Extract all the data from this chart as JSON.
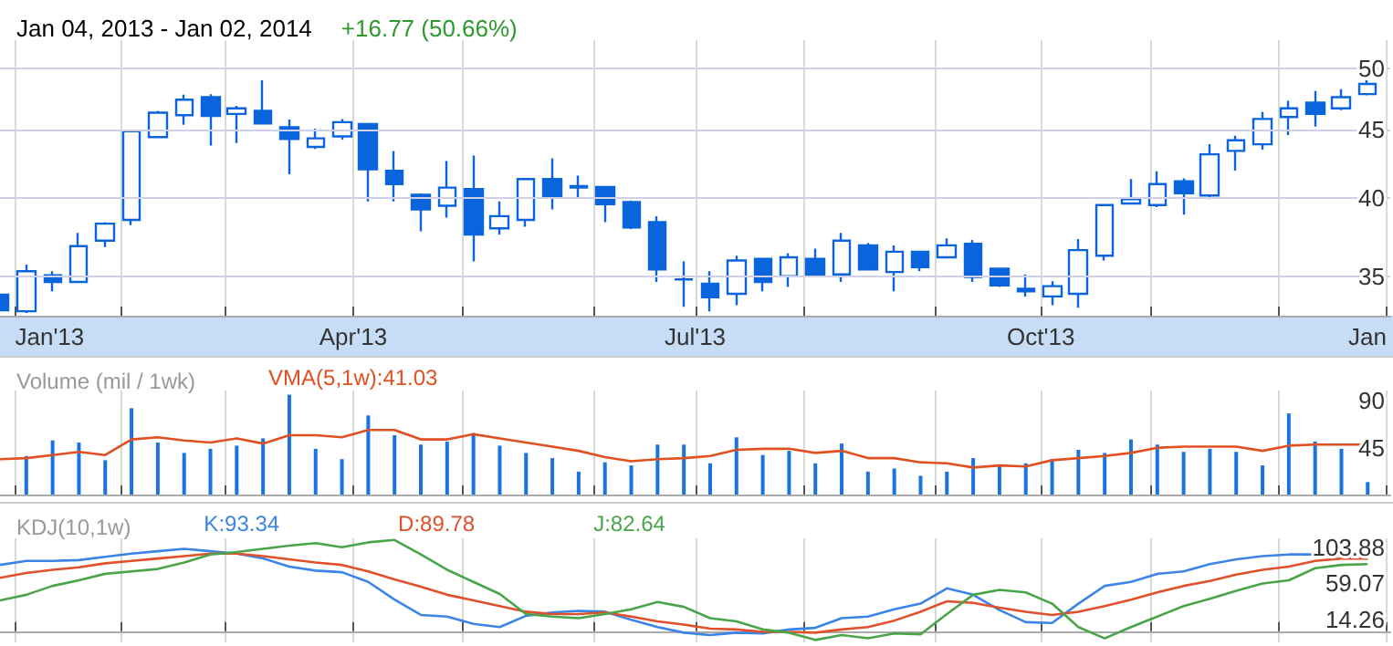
{
  "chart_data": [
    {
      "type": "candlestick",
      "title": "Jan 04, 2013 - Jan 02, 2014",
      "subtitle": "+16.77 (50.66%)",
      "color": "#0a64dc",
      "log": "y",
      "grid": true,
      "x": [
        "2012-12-28",
        "2013-01-04",
        "2013-01-11",
        "2013-01-18",
        "2013-01-25",
        "2013-02-01",
        "2013-02-08",
        "2013-02-15",
        "2013-02-22",
        "2013-03-01",
        "2013-03-08",
        "2013-03-15",
        "2013-03-22",
        "2013-03-29",
        "2013-04-05",
        "2013-04-12",
        "2013-04-19",
        "2013-04-26",
        "2013-05-03",
        "2013-05-10",
        "2013-05-17",
        "2013-05-24",
        "2013-05-31",
        "2013-06-07",
        "2013-06-14",
        "2013-06-21",
        "2013-06-28",
        "2013-07-05",
        "2013-07-12",
        "2013-07-19",
        "2013-07-26",
        "2013-08-02",
        "2013-08-09",
        "2013-08-16",
        "2013-08-23",
        "2013-08-30",
        "2013-09-06",
        "2013-09-13",
        "2013-09-20",
        "2013-09-27",
        "2013-10-04",
        "2013-10-11",
        "2013-10-18",
        "2013-10-25",
        "2013-11-01",
        "2013-11-08",
        "2013-11-15",
        "2013-11-22",
        "2013-11-29",
        "2013-12-06",
        "2013-12-13",
        "2013-12-20",
        "2013-12-27"
      ],
      "ohlc": [
        [
          33.9,
          34.0,
          32.9,
          33.0
        ],
        [
          32.95,
          35.7,
          32.85,
          35.3
        ],
        [
          35.05,
          35.3,
          34.1,
          34.65
        ],
        [
          34.65,
          37.7,
          34.65,
          36.85
        ],
        [
          37.2,
          38.4,
          36.8,
          38.3
        ],
        [
          38.55,
          45.0,
          38.2,
          44.9
        ],
        [
          44.45,
          46.5,
          44.4,
          46.35
        ],
        [
          46.15,
          47.8,
          45.4,
          47.4
        ],
        [
          47.6,
          47.85,
          43.8,
          46.1
        ],
        [
          46.25,
          46.9,
          44.0,
          46.7
        ],
        [
          46.5,
          49.0,
          45.5,
          45.5
        ],
        [
          45.2,
          45.8,
          41.7,
          44.3
        ],
        [
          43.7,
          45.1,
          43.55,
          44.35
        ],
        [
          44.5,
          45.85,
          44.25,
          45.6
        ],
        [
          45.45,
          45.5,
          39.8,
          42.05
        ],
        [
          41.95,
          43.4,
          39.8,
          41.0
        ],
        [
          40.25,
          40.35,
          37.8,
          39.25
        ],
        [
          39.5,
          42.65,
          38.7,
          40.75
        ],
        [
          40.65,
          43.05,
          35.9,
          37.6
        ],
        [
          38.0,
          39.8,
          37.6,
          38.8
        ],
        [
          38.55,
          41.35,
          38.1,
          41.35
        ],
        [
          41.35,
          42.85,
          39.25,
          40.05
        ],
        [
          40.85,
          41.6,
          40.05,
          40.75
        ],
        [
          40.8,
          40.8,
          38.4,
          39.6
        ],
        [
          39.75,
          39.85,
          37.95,
          38.05
        ],
        [
          38.4,
          38.8,
          34.65,
          35.4
        ],
        [
          34.8,
          35.9,
          33.2,
          34.8
        ],
        [
          34.55,
          35.3,
          32.95,
          33.75
        ],
        [
          33.95,
          36.25,
          33.3,
          35.95
        ],
        [
          36.05,
          36.05,
          34.1,
          34.65
        ],
        [
          35.0,
          36.4,
          34.35,
          36.15
        ],
        [
          36.05,
          36.7,
          35.1,
          35.1
        ],
        [
          35.1,
          37.7,
          34.65,
          37.2
        ],
        [
          36.9,
          37.05,
          35.4,
          35.4
        ],
        [
          35.25,
          36.9,
          34.1,
          36.5
        ],
        [
          36.5,
          36.5,
          35.3,
          35.55
        ],
        [
          36.15,
          37.35,
          36.15,
          36.9
        ],
        [
          37.0,
          37.25,
          34.65,
          34.95
        ],
        [
          35.45,
          35.45,
          34.35,
          34.45
        ],
        [
          34.25,
          35.1,
          33.8,
          34.1
        ],
        [
          33.8,
          34.7,
          33.3,
          34.4
        ],
        [
          33.95,
          37.3,
          33.15,
          36.6
        ],
        [
          36.25,
          39.55,
          35.95,
          39.55
        ],
        [
          39.65,
          41.35,
          39.65,
          39.95
        ],
        [
          39.55,
          41.9,
          39.4,
          41.0
        ],
        [
          41.2,
          41.4,
          38.9,
          40.35
        ],
        [
          40.2,
          43.9,
          39.95,
          43.15
        ],
        [
          43.4,
          44.55,
          41.95,
          44.2
        ],
        [
          43.9,
          46.4,
          43.5,
          45.85
        ],
        [
          46.0,
          47.3,
          44.6,
          46.7
        ],
        [
          47.15,
          48.1,
          45.25,
          46.25
        ],
        [
          46.7,
          48.25,
          46.55,
          47.6
        ],
        [
          47.85,
          49.0,
          47.75,
          48.7
        ]
      ],
      "xlim": [
        "2012-12-28",
        "2014-01-02"
      ],
      "xticks": [
        {
          "value": "2013-01-01",
          "label": "Jan'13"
        },
        {
          "value": "2013-01-29",
          "label": null
        },
        {
          "value": "2013-02-26",
          "label": null
        },
        {
          "value": "2013-04-01",
          "label": "Apr'13"
        },
        {
          "value": "2013-04-30",
          "label": null
        },
        {
          "value": "2013-06-04",
          "label": null
        },
        {
          "value": "2013-07-01",
          "label": "Jul'13"
        },
        {
          "value": "2013-07-30",
          "label": null
        },
        {
          "value": "2013-09-03",
          "label": null
        },
        {
          "value": "2013-10-01",
          "label": "Oct'13"
        },
        {
          "value": "2013-10-30",
          "label": null
        },
        {
          "value": "2013-12-03",
          "label": null
        },
        {
          "value": "2014-01-01",
          "label": "Jan"
        }
      ],
      "ylim": [
        32.7,
        52.5
      ],
      "yticks": [
        35,
        40,
        45,
        50
      ]
    },
    {
      "type": "bar",
      "title": "Volume (mil / 1wk)",
      "grid": "x",
      "legend": "top left",
      "marker": "none",
      "tick_labels": "y",
      "x": [
        "2012-12-28",
        "2013-01-04",
        "2013-01-11",
        "2013-01-18",
        "2013-01-25",
        "2013-02-01",
        "2013-02-08",
        "2013-02-15",
        "2013-02-22",
        "2013-03-01",
        "2013-03-08",
        "2013-03-15",
        "2013-03-22",
        "2013-03-29",
        "2013-04-05",
        "2013-04-12",
        "2013-04-19",
        "2013-04-26",
        "2013-05-03",
        "2013-05-10",
        "2013-05-17",
        "2013-05-24",
        "2013-05-31",
        "2013-06-07",
        "2013-06-14",
        "2013-06-21",
        "2013-06-28",
        "2013-07-05",
        "2013-07-12",
        "2013-07-19",
        "2013-07-26",
        "2013-08-02",
        "2013-08-09",
        "2013-08-16",
        "2013-08-23",
        "2013-08-30",
        "2013-09-06",
        "2013-09-13",
        "2013-09-20",
        "2013-09-27",
        "2013-10-04",
        "2013-10-11",
        "2013-10-18",
        "2013-10-25",
        "2013-11-01",
        "2013-11-08",
        "2013-11-15",
        "2013-11-22",
        "2013-11-29",
        "2013-12-06",
        "2013-12-13",
        "2013-12-20",
        "2013-12-27"
      ],
      "series": [
        {
          "color": "#1a73e0",
          "values": [
            null,
            37,
            52,
            50,
            33,
            83,
            50,
            40,
            44,
            47,
            54,
            96,
            44,
            34,
            76,
            57,
            48,
            51,
            59,
            47,
            40,
            35,
            22,
            31,
            28,
            48,
            48,
            30,
            55,
            38,
            42,
            30,
            49,
            22,
            25,
            18,
            22,
            35,
            29,
            30,
            34,
            43,
            40,
            53,
            48,
            41,
            44,
            41,
            28,
            78,
            51,
            44,
            12
          ]
        },
        {
          "type": "line",
          "name": "VMA(5,1w):41.03",
          "color": "#e05020",
          "values": [
            34,
            35,
            38,
            41,
            38,
            53,
            55,
            52,
            50,
            54,
            49,
            57,
            57,
            55,
            62,
            62,
            53,
            53,
            58,
            54,
            50,
            46,
            42,
            36,
            32,
            34,
            35,
            37,
            43,
            44,
            44,
            40,
            42,
            35,
            35,
            31,
            30,
            26,
            28,
            27,
            33,
            35,
            37,
            40,
            45,
            46,
            46,
            46,
            42,
            47,
            48,
            48,
            48
          ]
        }
      ],
      "xlim": [
        "2012-12-28",
        "2014-01-02"
      ],
      "xticks": [
        {
          "value": "2013-01-01",
          "label": null
        },
        {
          "value": "2013-01-29",
          "label": null
        },
        {
          "value": "2013-02-26",
          "label": null
        },
        {
          "value": "2013-04-01",
          "label": null
        },
        {
          "value": "2013-04-30",
          "label": null
        },
        {
          "value": "2013-06-04",
          "label": null
        },
        {
          "value": "2013-07-01",
          "label": null
        },
        {
          "value": "2013-07-30",
          "label": null
        },
        {
          "value": "2013-09-03",
          "label": null
        },
        {
          "value": "2013-10-01",
          "label": null
        },
        {
          "value": "2013-10-30",
          "label": null
        },
        {
          "value": "2013-12-03",
          "label": null
        },
        {
          "value": "2014-01-01",
          "label": null
        }
      ],
      "ylim": [
        0,
        100
      ],
      "yticks": [
        45,
        90
      ]
    },
    {
      "type": "line",
      "title": "KDJ(10,1w)",
      "grid": "x",
      "legend": "top left",
      "marker": "none",
      "tick_labels": "y",
      "x": [
        "2012-12-28",
        "2013-01-04",
        "2013-01-11",
        "2013-01-18",
        "2013-01-25",
        "2013-02-01",
        "2013-02-08",
        "2013-02-15",
        "2013-02-22",
        "2013-03-01",
        "2013-03-08",
        "2013-03-15",
        "2013-03-22",
        "2013-03-29",
        "2013-04-05",
        "2013-04-12",
        "2013-04-19",
        "2013-04-26",
        "2013-05-03",
        "2013-05-10",
        "2013-05-17",
        "2013-05-24",
        "2013-05-31",
        "2013-06-07",
        "2013-06-14",
        "2013-06-21",
        "2013-06-28",
        "2013-07-05",
        "2013-07-12",
        "2013-07-19",
        "2013-07-26",
        "2013-08-02",
        "2013-08-09",
        "2013-08-16",
        "2013-08-23",
        "2013-08-30",
        "2013-09-06",
        "2013-09-13",
        "2013-09-20",
        "2013-09-27",
        "2013-10-04",
        "2013-10-11",
        "2013-10-18",
        "2013-10-25",
        "2013-11-01",
        "2013-11-08",
        "2013-11-15",
        "2013-11-22",
        "2013-11-29",
        "2013-12-06",
        "2013-12-13",
        "2013-12-20",
        "2013-12-27"
      ],
      "series": [
        {
          "name": "K:93.34",
          "color": "#3c84e6",
          "values": [
            82,
            87,
            87,
            88,
            92,
            96,
            99,
            102,
            99,
            96,
            90,
            80,
            75,
            73,
            61,
            39,
            20,
            18,
            9,
            5,
            19,
            23,
            25,
            24,
            14,
            5,
            -2,
            -5,
            -2,
            -3,
            2,
            4,
            16,
            18,
            27,
            34,
            53,
            45,
            26,
            11,
            10,
            34,
            56,
            61,
            71,
            74,
            83,
            89,
            93,
            95,
            95,
            94,
            93
          ]
        },
        {
          "name": "D:89.78",
          "color": "#e0502a",
          "values": [
            66,
            72,
            76,
            79,
            84,
            87,
            90,
            93,
            96,
            96,
            93,
            89,
            85,
            82,
            74,
            64,
            55,
            45,
            38,
            31,
            24,
            21,
            21,
            23,
            18,
            12,
            8,
            3,
            2,
            -1,
            -1,
            -2,
            2,
            5,
            13,
            24,
            37,
            35,
            29,
            24,
            20,
            24,
            31,
            39,
            48,
            56,
            62,
            70,
            76,
            80,
            87,
            90,
            90
          ]
        },
        {
          "name": "J:82.64",
          "color": "#4aa54a",
          "values": [
            38,
            45,
            56,
            63,
            71,
            74,
            77,
            85,
            95,
            98,
            102,
            106,
            109,
            104,
            110,
            113,
            95,
            76,
            61,
            46,
            21,
            18,
            16,
            21,
            27,
            36,
            30,
            16,
            12,
            2,
            -2,
            -11,
            -5,
            -9,
            -3,
            -4,
            21,
            45,
            51,
            48,
            34,
            5,
            -9,
            5,
            18,
            31,
            40,
            50,
            59,
            63,
            78,
            82,
            83
          ]
        }
      ],
      "xlim": [
        "2012-12-28",
        "2014-01-02"
      ],
      "xticks": [
        {
          "value": "2013-01-01",
          "label": null
        },
        {
          "value": "2013-01-29",
          "label": null
        },
        {
          "value": "2013-02-26",
          "label": null
        },
        {
          "value": "2013-04-01",
          "label": null
        },
        {
          "value": "2013-04-30",
          "label": null
        },
        {
          "value": "2013-06-04",
          "label": null
        },
        {
          "value": "2013-07-01",
          "label": null
        },
        {
          "value": "2013-07-30",
          "label": null
        },
        {
          "value": "2013-09-03",
          "label": null
        },
        {
          "value": "2013-10-01",
          "label": null
        },
        {
          "value": "2013-10-30",
          "label": null
        },
        {
          "value": "2013-12-03",
          "label": null
        },
        {
          "value": "2014-01-01",
          "label": null
        }
      ],
      "ylim": [
        -14,
        115
      ],
      "yticks": [
        14.26,
        59.07,
        103.88
      ]
    }
  ]
}
